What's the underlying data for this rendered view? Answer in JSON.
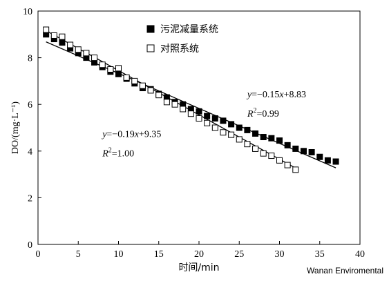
{
  "watermark": "Wanan Enviromental",
  "chart_data": {
    "type": "scatter",
    "xlabel": "时间/min",
    "ylabel": "DO/(mg·L⁻¹)",
    "xlim": [
      0,
      40
    ],
    "ylim": [
      0,
      10
    ],
    "xticks": [
      0,
      5,
      10,
      15,
      20,
      25,
      30,
      35,
      40
    ],
    "yticks": [
      0,
      2,
      4,
      6,
      8,
      10
    ],
    "grid": false,
    "legend_position": "top-left",
    "series": [
      {
        "name": "污泥减量系统",
        "marker": "filled-square",
        "x": [
          1,
          2,
          3,
          4,
          5,
          6,
          7,
          8,
          9,
          10,
          11,
          12,
          13,
          14,
          15,
          16,
          17,
          18,
          19,
          20,
          21,
          22,
          23,
          24,
          25,
          26,
          27,
          28,
          29,
          30,
          31,
          32,
          33,
          34,
          35,
          36,
          37
        ],
        "y": [
          9.0,
          8.8,
          8.65,
          8.4,
          8.2,
          8.0,
          7.8,
          7.6,
          7.4,
          7.3,
          7.1,
          6.9,
          6.7,
          6.65,
          6.45,
          6.3,
          6.1,
          6.0,
          5.8,
          5.7,
          5.5,
          5.4,
          5.3,
          5.15,
          5.0,
          4.9,
          4.75,
          4.6,
          4.55,
          4.45,
          4.25,
          4.1,
          4.0,
          3.95,
          3.75,
          3.6,
          3.55
        ],
        "fit": {
          "slope": -0.15,
          "intercept": 8.83,
          "x_range": [
            1,
            37
          ]
        }
      },
      {
        "name": "对照系统",
        "marker": "open-square",
        "x": [
          1,
          2,
          3,
          4,
          5,
          6,
          7,
          8,
          9,
          10,
          11,
          12,
          13,
          14,
          15,
          16,
          17,
          18,
          19,
          20,
          21,
          22,
          23,
          24,
          25,
          26,
          27,
          28,
          29,
          30,
          31,
          32
        ],
        "y": [
          9.2,
          8.95,
          8.9,
          8.55,
          8.35,
          8.2,
          8.0,
          7.7,
          7.5,
          7.55,
          7.15,
          7.0,
          6.8,
          6.6,
          6.4,
          6.1,
          6.0,
          5.8,
          5.6,
          5.4,
          5.2,
          5.0,
          4.8,
          4.7,
          4.5,
          4.3,
          4.1,
          3.9,
          3.8,
          3.6,
          3.4,
          3.2
        ],
        "fit": {
          "slope": -0.19,
          "intercept": 9.35,
          "x_range": [
            1,
            32
          ]
        }
      }
    ],
    "annotations": [
      {
        "id": "eq-sludge",
        "parts": [
          "y",
          "=−0.15",
          "x",
          "+8.83"
        ],
        "r2_parts": [
          "R",
          "2",
          "=0.99"
        ],
        "anchor_x": 26,
        "anchor_y": 6.3
      },
      {
        "id": "eq-control",
        "parts": [
          "y",
          "=−0.19",
          "x",
          "+9.35"
        ],
        "r2_parts": [
          "R",
          "2",
          "=1.00"
        ],
        "anchor_x": 8,
        "anchor_y": 4.6
      }
    ]
  }
}
